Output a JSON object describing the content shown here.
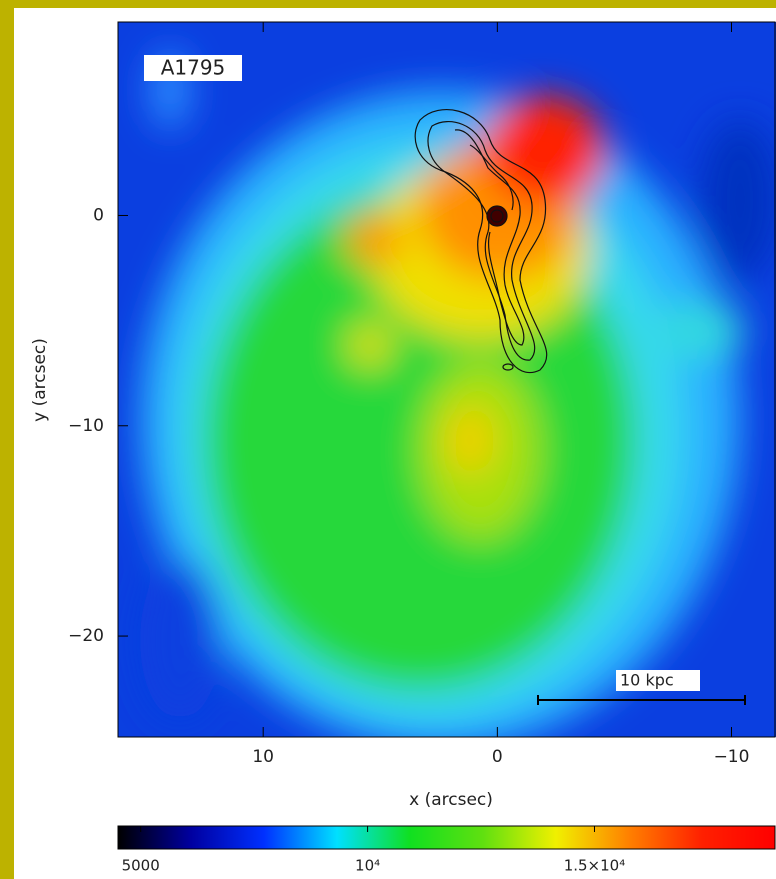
{
  "chart_data": {
    "type": "image",
    "annotations": [
      "A1795",
      "10 kpc"
    ],
    "xlabel": "x (arcsec)",
    "ylabel": "y (arcsec)",
    "xlim": [
      16.2,
      -11.9
    ],
    "ylim": [
      -24.8,
      9.2
    ],
    "xticks": [
      10,
      0,
      {
        "value": -10,
        "label": "−10"
      }
    ],
    "yticks": [
      0,
      {
        "value": -10,
        "label": "−10"
      },
      {
        "value": -20,
        "label": "−20"
      }
    ],
    "colorbar": {
      "clim": [
        4500,
        19000
      ],
      "ticks": [
        5000,
        {
          "value": 10000,
          "label": "10⁴"
        },
        {
          "value": 15000,
          "label": "1.5×10⁴"
        }
      ],
      "colormap": [
        "#000000",
        "#0000a0",
        "#0030ff",
        "#00e0ff",
        "#10e020",
        "#60e010",
        "#f0f000",
        "#ff8000",
        "#ff2000",
        "#ff0000"
      ]
    }
  }
}
